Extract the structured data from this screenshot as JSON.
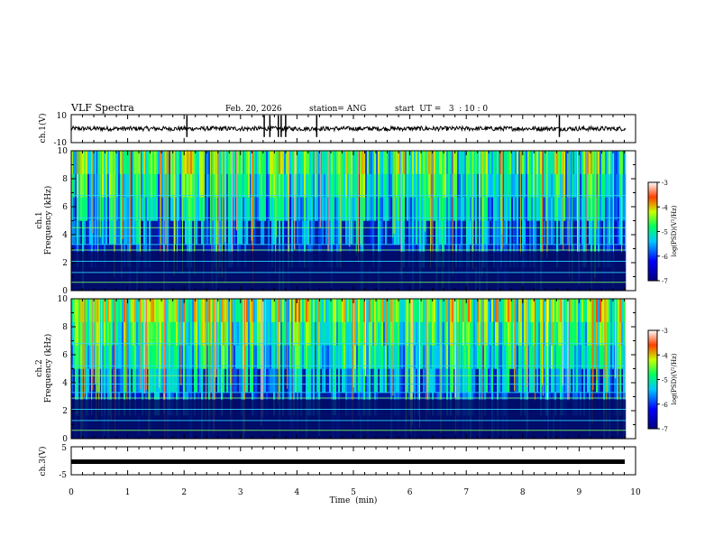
{
  "header": {
    "title": "VLF Spectra",
    "date": "Feb. 20, 2026",
    "station": "station= ANG",
    "start": "start  UT =   3  : 10 : 0"
  },
  "chart_data": {
    "type": "heatmap",
    "x_axis": {
      "label": "Time  (min)",
      "range": [
        0,
        10
      ],
      "ticks": [
        0,
        1,
        2,
        3,
        4,
        5,
        6,
        7,
        8,
        9,
        10
      ],
      "tick_labels": [
        "0",
        "1",
        "2",
        "3",
        "4",
        "5",
        "6",
        "7",
        "8",
        "9",
        "10"
      ],
      "data_end": 9.83
    },
    "panels": [
      {
        "id": "ch1-waveform",
        "kind": "line",
        "ylabel": "ch.1(V)",
        "ylim": [
          -10,
          10
        ],
        "tick_labels": [
          "10",
          "-10"
        ],
        "baseline": 0,
        "spike_times": [
          3.42,
          3.52,
          3.67,
          3.72,
          3.8,
          4.35,
          8.65,
          2.05
        ]
      },
      {
        "id": "ch1-spectrogram",
        "kind": "heatmap",
        "ylabel_line1": "ch.1",
        "ylabel_line2": "Frequency  (kHz)",
        "ylim": [
          0,
          10
        ],
        "ticks": [
          0,
          2,
          4,
          6,
          8,
          10
        ],
        "tick_labels": [
          "0",
          "2",
          "4",
          "6",
          "8",
          "10"
        ],
        "colorbar": {
          "label": "log(PSD)(V²/Hz)",
          "range": [
            -7,
            -3
          ],
          "ticks": [
            -3,
            -4,
            -5,
            -6,
            -7
          ],
          "tick_labels": [
            "-3",
            "-4",
            "-5",
            "-6",
            "-7"
          ]
        }
      },
      {
        "id": "ch2-spectrogram",
        "kind": "heatmap",
        "ylabel_line1": "ch.2",
        "ylabel_line2": "Frequency  (kHz)",
        "ylim": [
          0,
          10
        ],
        "ticks": [
          0,
          2,
          4,
          6,
          8,
          10
        ],
        "tick_labels": [
          "0",
          "2",
          "4",
          "6",
          "8",
          "10"
        ],
        "colorbar": {
          "label": "log(PSD)(V²/Hz)",
          "range": [
            -7,
            -3
          ],
          "ticks": [
            -3,
            -4,
            -5,
            -6,
            -7
          ],
          "tick_labels": [
            "-3",
            "-4",
            "-5",
            "-6",
            "-7"
          ]
        }
      },
      {
        "id": "ch3-waveform",
        "kind": "line",
        "ylabel": "ch.3(V)",
        "ylim": [
          -5,
          5
        ],
        "tick_labels": [
          "5",
          "-5"
        ],
        "baseline": -1
      }
    ]
  }
}
